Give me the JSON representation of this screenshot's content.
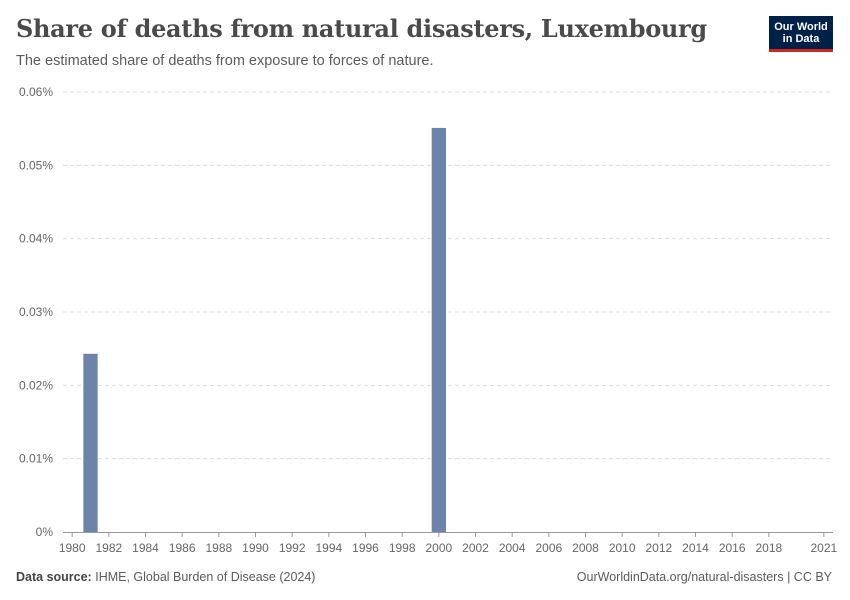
{
  "header": {
    "title": "Share of deaths from natural disasters, Luxembourg",
    "subtitle": "The estimated share of deaths from exposure to forces of nature."
  },
  "logo": {
    "line1": "Our World",
    "line2": "in Data"
  },
  "footer": {
    "source_label": "Data source:",
    "source_text": "IHME, Global Burden of Disease (2024)",
    "url": "OurWorldinData.org/natural-disasters | CC BY"
  },
  "colors": {
    "bar": "#6d83a9",
    "grid": "#dddddd",
    "axis": "#999999"
  },
  "chart_data": {
    "type": "bar",
    "title": "Share of deaths from natural disasters, Luxembourg",
    "xlabel": "",
    "ylabel": "",
    "x_range": [
      1980,
      2021
    ],
    "ylim": [
      0,
      0.06
    ],
    "y_ticks": [
      0,
      0.01,
      0.02,
      0.03,
      0.04,
      0.05,
      0.06
    ],
    "y_tick_labels": [
      "0%",
      "0.01%",
      "0.02%",
      "0.03%",
      "0.04%",
      "0.05%",
      "0.06%"
    ],
    "x_ticks": [
      1980,
      1982,
      1984,
      1986,
      1988,
      1990,
      1992,
      1994,
      1996,
      1998,
      2000,
      2002,
      2004,
      2006,
      2008,
      2010,
      2012,
      2014,
      2016,
      2018,
      2021
    ],
    "x_tick_labels": [
      "1980",
      "1982",
      "1984",
      "1986",
      "1988",
      "1990",
      "1992",
      "1994",
      "1996",
      "1998",
      "2000",
      "2002",
      "2004",
      "2006",
      "2008",
      "2010",
      "2012",
      "2014",
      "2016",
      "2018",
      "2021"
    ],
    "series": [
      {
        "name": "Luxembourg",
        "x": [
          1981,
          2000
        ],
        "values": [
          0.0243,
          0.0551
        ]
      }
    ],
    "grid": true
  }
}
